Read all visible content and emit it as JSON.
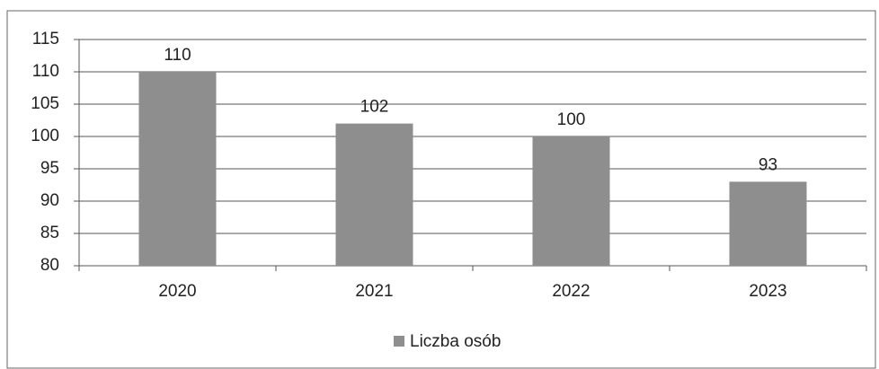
{
  "chart_data": {
    "type": "bar",
    "categories": [
      "2020",
      "2021",
      "2022",
      "2023"
    ],
    "series": [
      {
        "name": "Liczba osób",
        "color": "#8e8e8e",
        "values": [
          110,
          102,
          100,
          93
        ]
      }
    ],
    "ylim": [
      80,
      115
    ],
    "yticks": [
      80,
      85,
      90,
      95,
      100,
      105,
      110,
      115
    ],
    "grid": true,
    "legend": "bottom"
  }
}
